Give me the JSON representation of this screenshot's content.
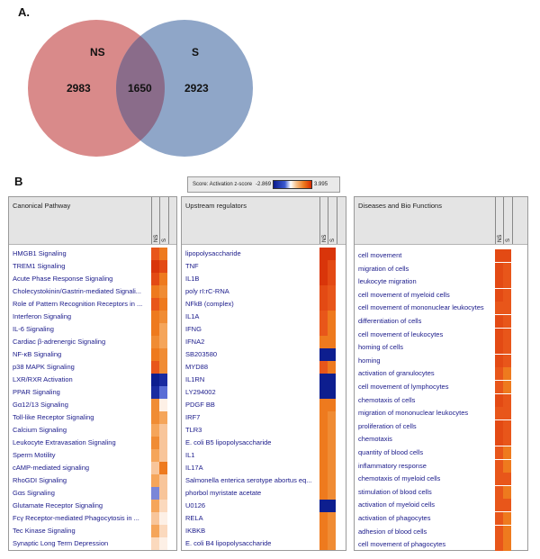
{
  "panel_a": {
    "letter": "A.",
    "ns_label": "NS",
    "s_label": "S",
    "ns_only": "2983",
    "overlap": "1650",
    "s_only": "2923",
    "ns_color": "#d98a8a",
    "s_color": "#8fa6c8",
    "overlap_color": "#8a6c8a"
  },
  "panel_b": {
    "letter": "B"
  },
  "legend": {
    "label": "Score: Activation z-score",
    "min": "-2.869",
    "max": "3.995"
  },
  "col_ns": "NS",
  "col_s": "S",
  "canonical": {
    "title": "Canonical Pathway",
    "rows": [
      {
        "label": "HMGB1 Signaling",
        "ns": "#e8561a",
        "s": "#ee7a1e"
      },
      {
        "label": "TREM1 Signaling",
        "ns": "#d9350a",
        "s": "#e34a14"
      },
      {
        "label": "Acute Phase Response Signaling",
        "ns": "#e34a14",
        "s": "#ee7a1e"
      },
      {
        "label": "Cholecystokinin/Gastrin-mediated Signali...",
        "ns": "#ee7a1e",
        "s": "#f08c34"
      },
      {
        "label": "Role of Pattern Recognition Receptors in ...",
        "ns": "#e8561a",
        "s": "#ee7a1e"
      },
      {
        "label": "Interferon Signaling",
        "ns": "#ee7a1e",
        "s": "#f08c34"
      },
      {
        "label": "IL-6 Signaling",
        "ns": "#ee7a1e",
        "s": "#f5a55a"
      },
      {
        "label": "Cardiac β-adrenergic Signaling",
        "ns": "#f08c34",
        "s": "#f5a55a"
      },
      {
        "label": "NF-κB Signaling",
        "ns": "#ee7a1e",
        "s": "#f08c34"
      },
      {
        "label": "p38 MAPK Signaling",
        "ns": "#e8561a",
        "s": "#f08c34"
      },
      {
        "label": "LXR/RXR Activation",
        "ns": "#0d1e8f",
        "s": "#1a2ba0"
      },
      {
        "label": "PPAR Signaling",
        "ns": "#1a2ba0",
        "s": "#5a6ed6"
      },
      {
        "label": "Gα12/13 Signaling",
        "ns": "#f08c34",
        "s": "#fdf0e6"
      },
      {
        "label": "Toll-like Receptor Signaling",
        "ns": "#f08c34",
        "s": "#f5a55a"
      },
      {
        "label": "Calcium Signaling",
        "ns": "#f5a55a",
        "s": "#f8c59a"
      },
      {
        "label": "Leukocyte Extravasation Signaling",
        "ns": "#f08c34",
        "s": "#f8c59a"
      },
      {
        "label": "Sperm Motility",
        "ns": "#f5a55a",
        "s": "#f8c59a"
      },
      {
        "label": "cAMP-mediated signaling",
        "ns": "#f8c59a",
        "s": "#ee7a1e"
      },
      {
        "label": "RhoGDI Signaling",
        "ns": "#f5a55a",
        "s": "#f8c59a"
      },
      {
        "label": "Gαs Signaling",
        "ns": "#7a86d8",
        "s": "#f8c59a"
      },
      {
        "label": "Glutamate Receptor Signaling",
        "ns": "#f5a55a",
        "s": "#fbd9bd"
      },
      {
        "label": "Fcγ Receptor-mediated Phagocytosis in ...",
        "ns": "#f8c59a",
        "s": "#fdf0e6"
      },
      {
        "label": "Tec Kinase Signaling",
        "ns": "#f5a55a",
        "s": "#fbd9bd"
      },
      {
        "label": "Synaptic Long Term Depression",
        "ns": "#fbd9bd",
        "s": "#fdf0e6"
      }
    ]
  },
  "upstream": {
    "title": "Upstream regulators",
    "rows": [
      {
        "label": "lipopolysaccharide",
        "ns": "#d9350a",
        "s": "#d9350a"
      },
      {
        "label": "TNF",
        "ns": "#d9350a",
        "s": "#e34a14"
      },
      {
        "label": "IL1B",
        "ns": "#d9350a",
        "s": "#e34a14"
      },
      {
        "label": "poly rI:rC-RNA",
        "ns": "#e34a14",
        "s": "#e8561a"
      },
      {
        "label": "NFkB (complex)",
        "ns": "#e34a14",
        "s": "#e8561a"
      },
      {
        "label": "IL1A",
        "ns": "#e8561a",
        "s": "#ee7a1e"
      },
      {
        "label": "IFNG",
        "ns": "#e8561a",
        "s": "#ee7a1e"
      },
      {
        "label": "IFNA2",
        "ns": "#ee7a1e",
        "s": "#ee7a1e"
      },
      {
        "label": "SB203580",
        "ns": "#0d1e8f",
        "s": "#0d1e8f"
      },
      {
        "label": "MYD88",
        "ns": "#e8561a",
        "s": "#ee7a1e"
      },
      {
        "label": "IL1RN",
        "ns": "#0d1e8f",
        "s": "#0d1e8f"
      },
      {
        "label": "LY294002",
        "ns": "#0d1e8f",
        "s": "#0d1e8f"
      },
      {
        "label": "PDGF BB",
        "ns": "#ee7a1e",
        "s": "#ee7a1e"
      },
      {
        "label": "IRF7",
        "ns": "#ee7a1e",
        "s": "#f08c34"
      },
      {
        "label": "TLR3",
        "ns": "#ee7a1e",
        "s": "#f08c34"
      },
      {
        "label": "E. coli B5 lipopolysaccharide",
        "ns": "#ee7a1e",
        "s": "#f08c34"
      },
      {
        "label": "IL1",
        "ns": "#ee7a1e",
        "s": "#f08c34"
      },
      {
        "label": "IL17A",
        "ns": "#ee7a1e",
        "s": "#f08c34"
      },
      {
        "label": "Salmonella enterica serotype abortus eq...",
        "ns": "#ee7a1e",
        "s": "#f08c34"
      },
      {
        "label": "phorbol myristate acetate",
        "ns": "#ee7a1e",
        "s": "#f08c34"
      },
      {
        "label": "U0126",
        "ns": "#0d1e8f",
        "s": "#0d1e8f"
      },
      {
        "label": "RELA",
        "ns": "#ee7a1e",
        "s": "#f08c34"
      },
      {
        "label": "IKBKB",
        "ns": "#ee7a1e",
        "s": "#f08c34"
      },
      {
        "label": "E. coli B4 lipopolysaccharide",
        "ns": "#ee7a1e",
        "s": "#f08c34"
      }
    ]
  },
  "diseases": {
    "title": "Diseases and Bio Functions",
    "rows": [
      {
        "label": "cell movement",
        "ns": "#e34a14",
        "s": "#e34a14"
      },
      {
        "label": "migration of cells",
        "ns": "#e34a14",
        "s": "#e8561a"
      },
      {
        "label": "leukocyte migration",
        "ns": "#e34a14",
        "s": "#e8561a"
      },
      {
        "label": "cell movement of myeloid cells",
        "ns": "#e34a14",
        "s": "#e8561a"
      },
      {
        "label": "cell movement of mononuclear leukocytes",
        "ns": "#e8561a",
        "s": "#e8561a"
      },
      {
        "label": "differentiation of cells",
        "ns": "#e34a14",
        "s": "#e8561a"
      },
      {
        "label": "cell movement of leukocytes",
        "ns": "#e34a14",
        "s": "#e8561a"
      },
      {
        "label": "homing of cells",
        "ns": "#e34a14",
        "s": "#e8561a"
      },
      {
        "label": "homing",
        "ns": "#e34a14",
        "s": "#e8561a"
      },
      {
        "label": "activation of granulocytes",
        "ns": "#e8561a",
        "s": "#ee7a1e"
      },
      {
        "label": "cell movement of lymphocytes",
        "ns": "#e8561a",
        "s": "#ee7a1e"
      },
      {
        "label": "chemotaxis of cells",
        "ns": "#e34a14",
        "s": "#e8561a"
      },
      {
        "label": "migration of mononuclear leukocytes",
        "ns": "#e8561a",
        "s": "#e8561a"
      },
      {
        "label": "proliferation of cells",
        "ns": "#e34a14",
        "s": "#e8561a"
      },
      {
        "label": "chemotaxis",
        "ns": "#e34a14",
        "s": "#e8561a"
      },
      {
        "label": "quantity of blood cells",
        "ns": "#e8561a",
        "s": "#ee7a1e"
      },
      {
        "label": "inflammatory response",
        "ns": "#e8561a",
        "s": "#ee7a1e"
      },
      {
        "label": "chemotaxis of myeloid cells",
        "ns": "#e8561a",
        "s": "#e8561a"
      },
      {
        "label": "stimulation of blood cells",
        "ns": "#e8561a",
        "s": "#ee7a1e"
      },
      {
        "label": "activation of myeloid cells",
        "ns": "#e8561a",
        "s": "#e8561a"
      },
      {
        "label": "activation of phagocytes",
        "ns": "#e8561a",
        "s": "#ee7a1e"
      },
      {
        "label": "adhesion of blood cells",
        "ns": "#e8561a",
        "s": "#ee7a1e"
      },
      {
        "label": "cell movement of phagocytes",
        "ns": "#e8561a",
        "s": "#ee7a1e"
      }
    ]
  }
}
